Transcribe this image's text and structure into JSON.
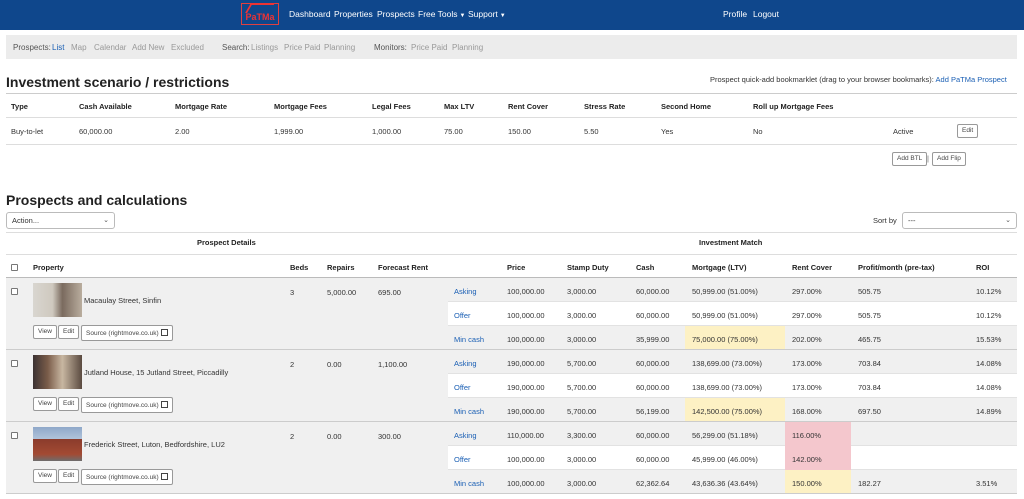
{
  "nav": {
    "logo": "PaTMa",
    "dashboard": "Dashboard",
    "properties": "Properties",
    "prospects": "Prospects",
    "free_tools": "Free Tools",
    "support": "Support",
    "profile": "Profile",
    "logout": "Logout"
  },
  "subbar": {
    "prospects_label": "Prospects:",
    "list": "List",
    "map": "Map",
    "calendar": "Calendar",
    "add_new": "Add New",
    "excluded": "Excluded",
    "search_label": "Search:",
    "listings": "Listings",
    "price_paid": "Price Paid",
    "planning": "Planning",
    "monitors_label": "Monitors:",
    "mon_price_paid": "Price Paid",
    "mon_planning": "Planning"
  },
  "scenario": {
    "title": "Investment scenario / restrictions",
    "bookmarklet_text": "Prospect quick-add bookmarklet (drag to your browser bookmarks):",
    "bookmarklet_link": "Add PaTMa Prospect",
    "headers": [
      "Type",
      "Cash Available",
      "Mortgage Rate",
      "Mortgage Fees",
      "Legal Fees",
      "Max LTV",
      "Rent Cover",
      "Stress Rate",
      "Second Home",
      "Roll up Mortgage Fees"
    ],
    "row": [
      "Buy-to-let",
      "60,000.00",
      "2.00",
      "1,999.00",
      "1,000.00",
      "75.00",
      "150.00",
      "5.50",
      "Yes",
      "No"
    ],
    "status": "Active",
    "edit": "Edit",
    "add_btl": "Add BTL",
    "sep": "|",
    "add_flip": "Add Flip"
  },
  "prospects": {
    "title": "Prospects and calculations",
    "action_placeholder": "Action...",
    "sort_label": "Sort by",
    "sort_value": "---",
    "group_details": "Prospect Details",
    "group_match": "Investment Match",
    "headers": {
      "property": "Property",
      "beds": "Beds",
      "repairs": "Repairs",
      "forecast_rent": "Forecast Rent",
      "price": "Price",
      "stamp_duty": "Stamp Duty",
      "cash": "Cash",
      "mortgage": "Mortgage (LTV)",
      "rent_cover": "Rent Cover",
      "profit": "Profit/month (pre-tax)",
      "roi": "ROI"
    },
    "btn_view": "View",
    "btn_edit": "Edit",
    "btn_source": "Source (rightmove.co.uk)",
    "items": [
      {
        "name": "Macaulay Street, Sinfin",
        "beds": "3",
        "repairs": "5,000.00",
        "rent": "695.00",
        "rows": [
          {
            "label": "Asking",
            "price": "100,000.00",
            "stamp": "3,000.00",
            "cash": "60,000.00",
            "mortgage": "50,999.00 (51.00%)",
            "cover": "297.00%",
            "profit": "505.75",
            "roi": "10.12%"
          },
          {
            "label": "Offer",
            "price": "100,000.00",
            "stamp": "3,000.00",
            "cash": "60,000.00",
            "mortgage": "50,999.00 (51.00%)",
            "cover": "297.00%",
            "profit": "505.75",
            "roi": "10.12%"
          },
          {
            "label": "Min cash",
            "price": "100,000.00",
            "stamp": "3,000.00",
            "cash": "35,999.00",
            "mortgage": "75,000.00 (75.00%)",
            "cover": "202.00%",
            "profit": "465.75",
            "roi": "15.53%"
          }
        ]
      },
      {
        "name": "Jutland House, 15 Jutland Street, Piccadilly",
        "beds": "2",
        "repairs": "0.00",
        "rent": "1,100.00",
        "rows": [
          {
            "label": "Asking",
            "price": "190,000.00",
            "stamp": "5,700.00",
            "cash": "60,000.00",
            "mortgage": "138,699.00 (73.00%)",
            "cover": "173.00%",
            "profit": "703.84",
            "roi": "14.08%"
          },
          {
            "label": "Offer",
            "price": "190,000.00",
            "stamp": "5,700.00",
            "cash": "60,000.00",
            "mortgage": "138,699.00 (73.00%)",
            "cover": "173.00%",
            "profit": "703.84",
            "roi": "14.08%"
          },
          {
            "label": "Min cash",
            "price": "190,000.00",
            "stamp": "5,700.00",
            "cash": "56,199.00",
            "mortgage": "142,500.00 (75.00%)",
            "cover": "168.00%",
            "profit": "697.50",
            "roi": "14.89%"
          }
        ]
      },
      {
        "name": "Frederick Street, Luton, Bedfordshire, LU2",
        "beds": "2",
        "repairs": "0.00",
        "rent": "300.00",
        "rows": [
          {
            "label": "Asking",
            "price": "110,000.00",
            "stamp": "3,300.00",
            "cash": "60,000.00",
            "mortgage": "56,299.00 (51.18%)",
            "cover": "116.00%",
            "profit": "",
            "roi": ""
          },
          {
            "label": "Offer",
            "price": "100,000.00",
            "stamp": "3,000.00",
            "cash": "60,000.00",
            "mortgage": "45,999.00 (46.00%)",
            "cover": "142.00%",
            "profit": "",
            "roi": ""
          },
          {
            "label": "Min cash",
            "price": "100,000.00",
            "stamp": "3,000.00",
            "cash": "62,362.64",
            "mortgage": "43,636.36 (43.64%)",
            "cover": "150.00%",
            "profit": "182.27",
            "roi": "3.51%"
          }
        ]
      }
    ]
  }
}
